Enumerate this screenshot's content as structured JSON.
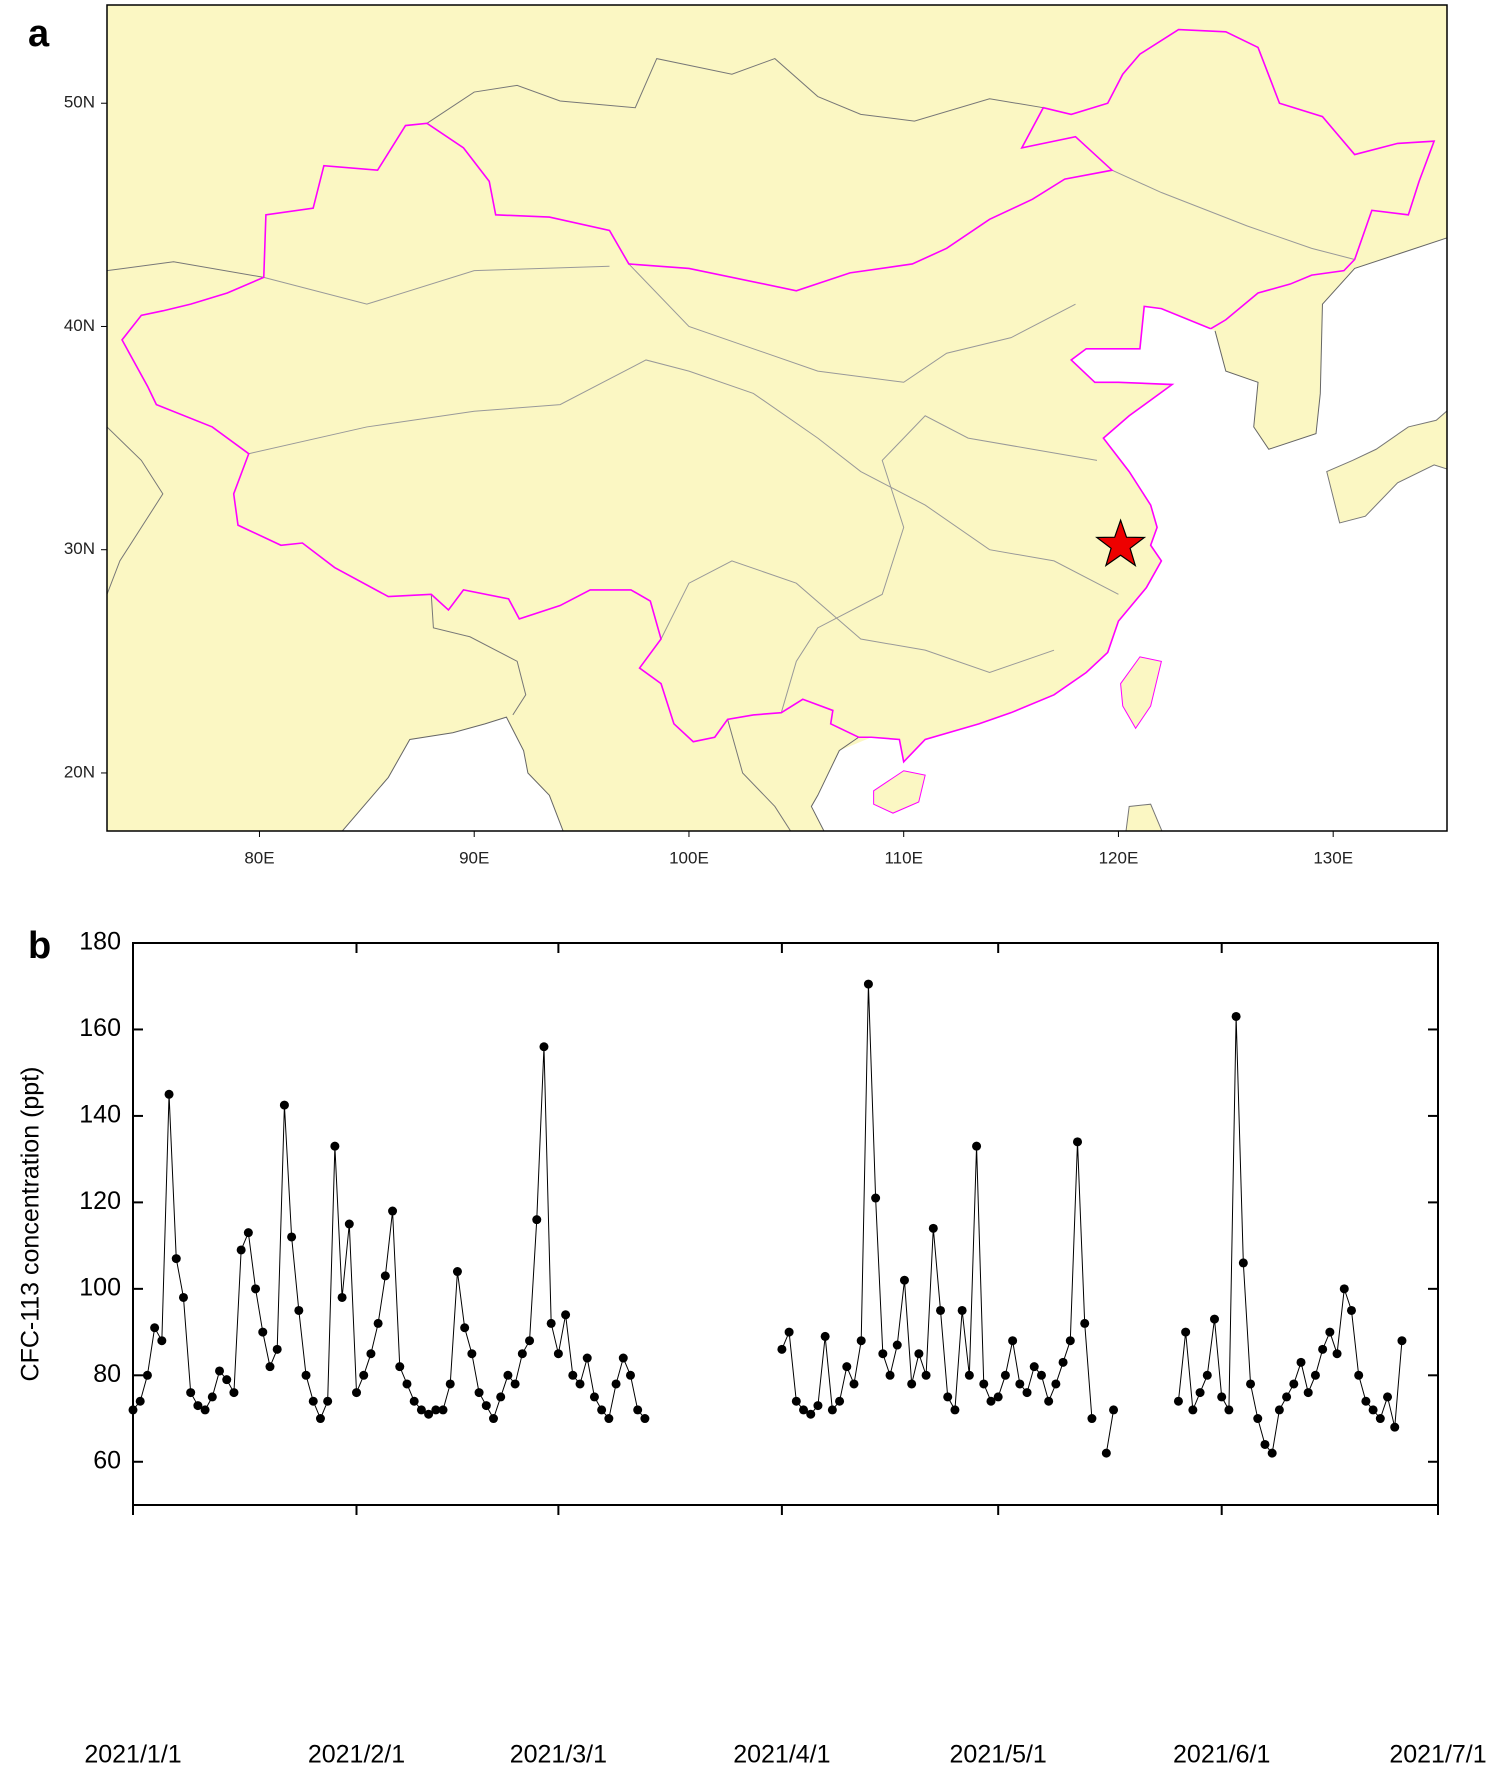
{
  "chart_data": [
    {
      "type": "map",
      "label": "a",
      "xlim": [
        72.9,
        135.3
      ],
      "xticks": [
        {
          "value": 80,
          "label": "80E"
        },
        {
          "value": 90,
          "label": "90E"
        },
        {
          "value": 100,
          "label": "100E"
        },
        {
          "value": 110,
          "label": "110E"
        },
        {
          "value": 120,
          "label": "120E"
        },
        {
          "value": 130,
          "label": "130E"
        }
      ],
      "ylim": [
        17.4,
        54.4
      ],
      "yticks": [
        {
          "value": 20,
          "label": "20N"
        },
        {
          "value": 30,
          "label": "30N"
        },
        {
          "value": 40,
          "label": "40N"
        },
        {
          "value": 50,
          "label": "50N"
        }
      ],
      "site": {
        "lon": 120.1,
        "lat": 30.2,
        "color": "#ee0000"
      }
    },
    {
      "type": "line",
      "label": "b",
      "ylabel": "CFC-113 concentration (ppt)",
      "color": "#000000",
      "x": [
        "2021/1/1",
        "2021/1/2",
        "2021/1/3",
        "2021/1/4",
        "2021/1/5",
        "2021/1/6",
        "2021/1/7",
        "2021/1/8",
        "2021/1/9",
        "2021/1/10",
        "2021/1/11",
        "2021/1/12",
        "2021/1/13",
        "2021/1/14",
        "2021/1/15",
        "2021/1/16",
        "2021/1/17",
        "2021/1/18",
        "2021/1/19",
        "2021/1/20",
        "2021/1/21",
        "2021/1/22",
        "2021/1/23",
        "2021/1/24",
        "2021/1/25",
        "2021/1/26",
        "2021/1/27",
        "2021/1/28",
        "2021/1/29",
        "2021/1/30",
        "2021/1/31",
        "2021/2/1",
        "2021/2/2",
        "2021/2/3",
        "2021/2/4",
        "2021/2/5",
        "2021/2/6",
        "2021/2/7",
        "2021/2/8",
        "2021/2/9",
        "2021/2/10",
        "2021/2/11",
        "2021/2/12",
        "2021/2/13",
        "2021/2/14",
        "2021/2/15",
        "2021/2/16",
        "2021/2/17",
        "2021/2/18",
        "2021/2/19",
        "2021/2/20",
        "2021/2/21",
        "2021/2/22",
        "2021/2/23",
        "2021/2/24",
        "2021/2/25",
        "2021/2/26",
        "2021/2/27",
        "2021/2/28",
        "2021/3/1",
        "2021/3/2",
        "2021/3/3",
        "2021/3/4",
        "2021/3/5",
        "2021/3/6",
        "2021/3/7",
        "2021/3/8",
        "2021/3/9",
        "2021/3/10",
        "2021/3/11",
        "2021/3/12",
        "2021/3/13",
        "2021/3/14",
        "2021/4/1",
        "2021/4/2",
        "2021/4/3",
        "2021/4/4",
        "2021/4/5",
        "2021/4/6",
        "2021/4/7",
        "2021/4/8",
        "2021/4/9",
        "2021/4/10",
        "2021/4/11",
        "2021/4/12",
        "2021/4/13",
        "2021/4/14",
        "2021/4/15",
        "2021/4/16",
        "2021/4/17",
        "2021/4/18",
        "2021/4/19",
        "2021/4/20",
        "2021/4/21",
        "2021/4/22",
        "2021/4/23",
        "2021/4/24",
        "2021/4/25",
        "2021/4/26",
        "2021/4/27",
        "2021/4/28",
        "2021/4/29",
        "2021/4/30",
        "2021/5/1",
        "2021/5/2",
        "2021/5/3",
        "2021/5/4",
        "2021/5/5",
        "2021/5/6",
        "2021/5/7",
        "2021/5/8",
        "2021/5/9",
        "2021/5/10",
        "2021/5/11",
        "2021/5/12",
        "2021/5/13",
        "2021/5/14",
        "2021/5/15",
        "2021/5/16",
        "2021/5/17",
        "2021/5/18",
        "2021/5/26",
        "2021/5/27",
        "2021/5/28",
        "2021/5/29",
        "2021/5/30",
        "2021/5/31",
        "2021/6/1",
        "2021/6/2",
        "2021/6/3",
        "2021/6/4",
        "2021/6/5",
        "2021/6/6",
        "2021/6/7",
        "2021/6/8",
        "2021/6/9",
        "2021/6/10",
        "2021/6/11",
        "2021/6/12",
        "2021/6/13",
        "2021/6/14",
        "2021/6/15",
        "2021/6/16",
        "2021/6/17",
        "2021/6/18",
        "2021/6/19",
        "2021/6/20",
        "2021/6/21",
        "2021/6/22",
        "2021/6/23",
        "2021/6/24",
        "2021/6/25",
        "2021/6/26"
      ],
      "values": [
        72,
        74,
        80,
        91,
        88,
        145,
        107,
        98,
        76,
        73,
        72,
        75,
        81,
        79,
        76,
        109,
        113,
        100,
        90,
        82,
        86,
        142.5,
        112,
        95,
        80,
        74,
        70,
        74,
        133,
        98,
        115,
        76,
        80,
        85,
        92,
        103,
        118,
        82,
        78,
        74,
        72,
        71,
        72,
        72,
        78,
        104,
        91,
        85,
        76,
        73,
        70,
        75,
        80,
        78,
        85,
        88,
        116,
        156,
        92,
        85,
        94,
        80,
        78,
        84,
        75,
        72,
        70,
        78,
        84,
        80,
        72,
        70,
        null,
        86,
        90,
        74,
        72,
        71,
        73,
        89,
        72,
        74,
        82,
        78,
        88,
        170.5,
        121,
        85,
        80,
        87,
        102,
        78,
        85,
        80,
        114,
        95,
        75,
        72,
        95,
        80,
        133,
        78,
        74,
        75,
        80,
        88,
        78,
        76,
        82,
        80,
        74,
        78,
        83,
        88,
        134,
        92,
        70,
        null,
        62,
        72,
        null,
        74,
        90,
        72,
        76,
        80,
        93,
        75,
        72,
        163,
        106,
        78,
        70,
        64,
        62,
        72,
        75,
        78,
        83,
        76,
        80,
        86,
        90,
        85,
        100,
        95,
        80,
        74,
        72,
        70,
        75,
        68,
        88
      ],
      "xlim": [
        "2021/1/1",
        "2021/7/1"
      ],
      "xticks": [
        "2021/1/1",
        "2021/2/1",
        "2021/3/1",
        "2021/4/1",
        "2021/5/1",
        "2021/6/1",
        "2021/7/1"
      ],
      "ylim": [
        50,
        180
      ],
      "yticks": [
        60,
        80,
        100,
        120,
        140,
        160,
        180
      ]
    }
  ]
}
